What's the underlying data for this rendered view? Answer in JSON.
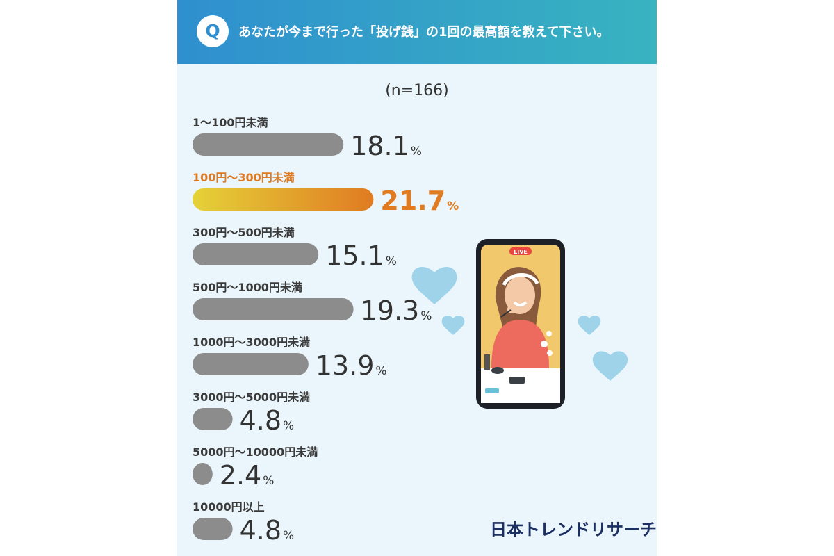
{
  "question": {
    "badge": "Q",
    "text": "あなたが今まで行った「投げ銭」の1回の最高額を教えて下さい。"
  },
  "sample_size": "(n=166)",
  "brand": "日本トレンドリサーチ",
  "illustration": {
    "live_badge": "LIVE"
  },
  "colors": {
    "bar": "#8c8c8c",
    "highlight_start": "#e5d238",
    "highlight_end": "#e07b22",
    "highlight_text": "#e07b22",
    "background": "#eaf6fb"
  },
  "chart_data": {
    "type": "bar",
    "orientation": "horizontal",
    "title": "",
    "xlabel": "",
    "ylabel": "",
    "unit": "%",
    "xlim": [
      0,
      22
    ],
    "categories": [
      "1～100円未満",
      "100円～300円未満",
      "300円～500円未満",
      "500円～1000円未満",
      "1000円～3000円未満",
      "3000円～5000円未満",
      "5000円～10000円未満",
      "10000円以上"
    ],
    "values": [
      18.1,
      21.7,
      15.1,
      19.3,
      13.9,
      4.8,
      2.4,
      4.8
    ],
    "value_labels": [
      "18.1",
      "21.7",
      "15.1",
      "19.3",
      "13.9",
      "4.8",
      "2.4",
      "4.8"
    ],
    "highlight_index": 1
  }
}
